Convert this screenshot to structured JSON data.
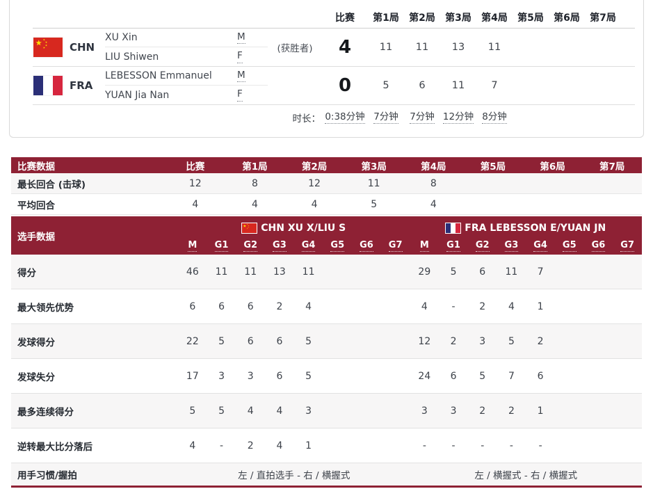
{
  "scoreboard": {
    "columns": [
      "比赛",
      "第1局",
      "第2局",
      "第3局",
      "第4局",
      "第5局",
      "第6局",
      "第7局"
    ],
    "teams": [
      {
        "code": "CHN",
        "flag": "cn",
        "winner_note": "(获胜者)",
        "score": "4",
        "players": [
          {
            "name": "XU Xin",
            "gender": "M"
          },
          {
            "name": "LIU Shiwen",
            "gender": "F"
          }
        ],
        "games": [
          "11",
          "11",
          "13",
          "11",
          "",
          "",
          ""
        ]
      },
      {
        "code": "FRA",
        "flag": "fr",
        "winner_note": "",
        "score": "0",
        "players": [
          {
            "name": "LEBESSON Emmanuel",
            "gender": "M"
          },
          {
            "name": "YUAN Jia Nan",
            "gender": "F"
          }
        ],
        "games": [
          "5",
          "6",
          "11",
          "7",
          "",
          "",
          ""
        ]
      }
    ],
    "duration": {
      "label": "时长：",
      "match": "0:38分钟",
      "games": [
        "7分钟",
        "7分钟",
        "12分钟",
        "8分钟",
        "",
        "",
        ""
      ]
    }
  },
  "match_stats": {
    "title": "比赛数据",
    "columns": [
      "比赛",
      "第1局",
      "第2局",
      "第3局",
      "第4局",
      "第5局",
      "第6局",
      "第7局"
    ],
    "rows": [
      {
        "label": "最长回合 (击球)",
        "values": [
          "12",
          "8",
          "12",
          "11",
          "8",
          "",
          "",
          ""
        ]
      },
      {
        "label": "平均回合",
        "values": [
          "4",
          "4",
          "4",
          "5",
          "4",
          "",
          "",
          ""
        ]
      }
    ]
  },
  "player_stats": {
    "title": "选手数据",
    "groups": [
      {
        "flag": "cn",
        "label": "CHN XU X/LIU S"
      },
      {
        "flag": "fr",
        "label": "FRA LEBESSON E/YUAN JN"
      }
    ],
    "sub_columns": [
      "M",
      "G1",
      "G2",
      "G3",
      "G4",
      "G5",
      "G6",
      "G7"
    ],
    "rows": [
      {
        "label": "得分",
        "chn": [
          "46",
          "11",
          "11",
          "13",
          "11",
          "",
          "",
          ""
        ],
        "fra": [
          "29",
          "5",
          "6",
          "11",
          "7",
          "",
          "",
          ""
        ]
      },
      {
        "label": "最大领先优势",
        "chn": [
          "6",
          "6",
          "6",
          "2",
          "4",
          "",
          "",
          ""
        ],
        "fra": [
          "4",
          "-",
          "2",
          "4",
          "1",
          "",
          "",
          ""
        ]
      },
      {
        "label": "发球得分",
        "chn": [
          "22",
          "5",
          "6",
          "6",
          "5",
          "",
          "",
          ""
        ],
        "fra": [
          "12",
          "2",
          "3",
          "5",
          "2",
          "",
          "",
          ""
        ]
      },
      {
        "label": "发球失分",
        "chn": [
          "17",
          "3",
          "3",
          "6",
          "5",
          "",
          "",
          ""
        ],
        "fra": [
          "24",
          "6",
          "5",
          "7",
          "6",
          "",
          "",
          ""
        ]
      },
      {
        "label": "最多连续得分",
        "chn": [
          "5",
          "5",
          "4",
          "4",
          "3",
          "",
          "",
          ""
        ],
        "fra": [
          "3",
          "3",
          "2",
          "2",
          "1",
          "",
          "",
          ""
        ]
      },
      {
        "label": "逆转最大比分落后",
        "chn": [
          "4",
          "-",
          "2",
          "4",
          "1",
          "",
          "",
          ""
        ],
        "fra": [
          "-",
          "-",
          "-",
          "-",
          "-",
          "",
          "",
          ""
        ]
      }
    ],
    "hand_row": {
      "label": "用手习惯/握拍",
      "chn": "左 / 直拍选手 - 右 / 横握式",
      "fra": "左 / 横握式 - 右 / 横握式"
    }
  },
  "colors": {
    "maroon": "#8e2134",
    "stripe": "#f7f6f6",
    "flag_red": "#d7281f",
    "flag_gold": "#ffde00",
    "fra_blue": "#2b2f77",
    "fra_red": "#d6263e"
  }
}
